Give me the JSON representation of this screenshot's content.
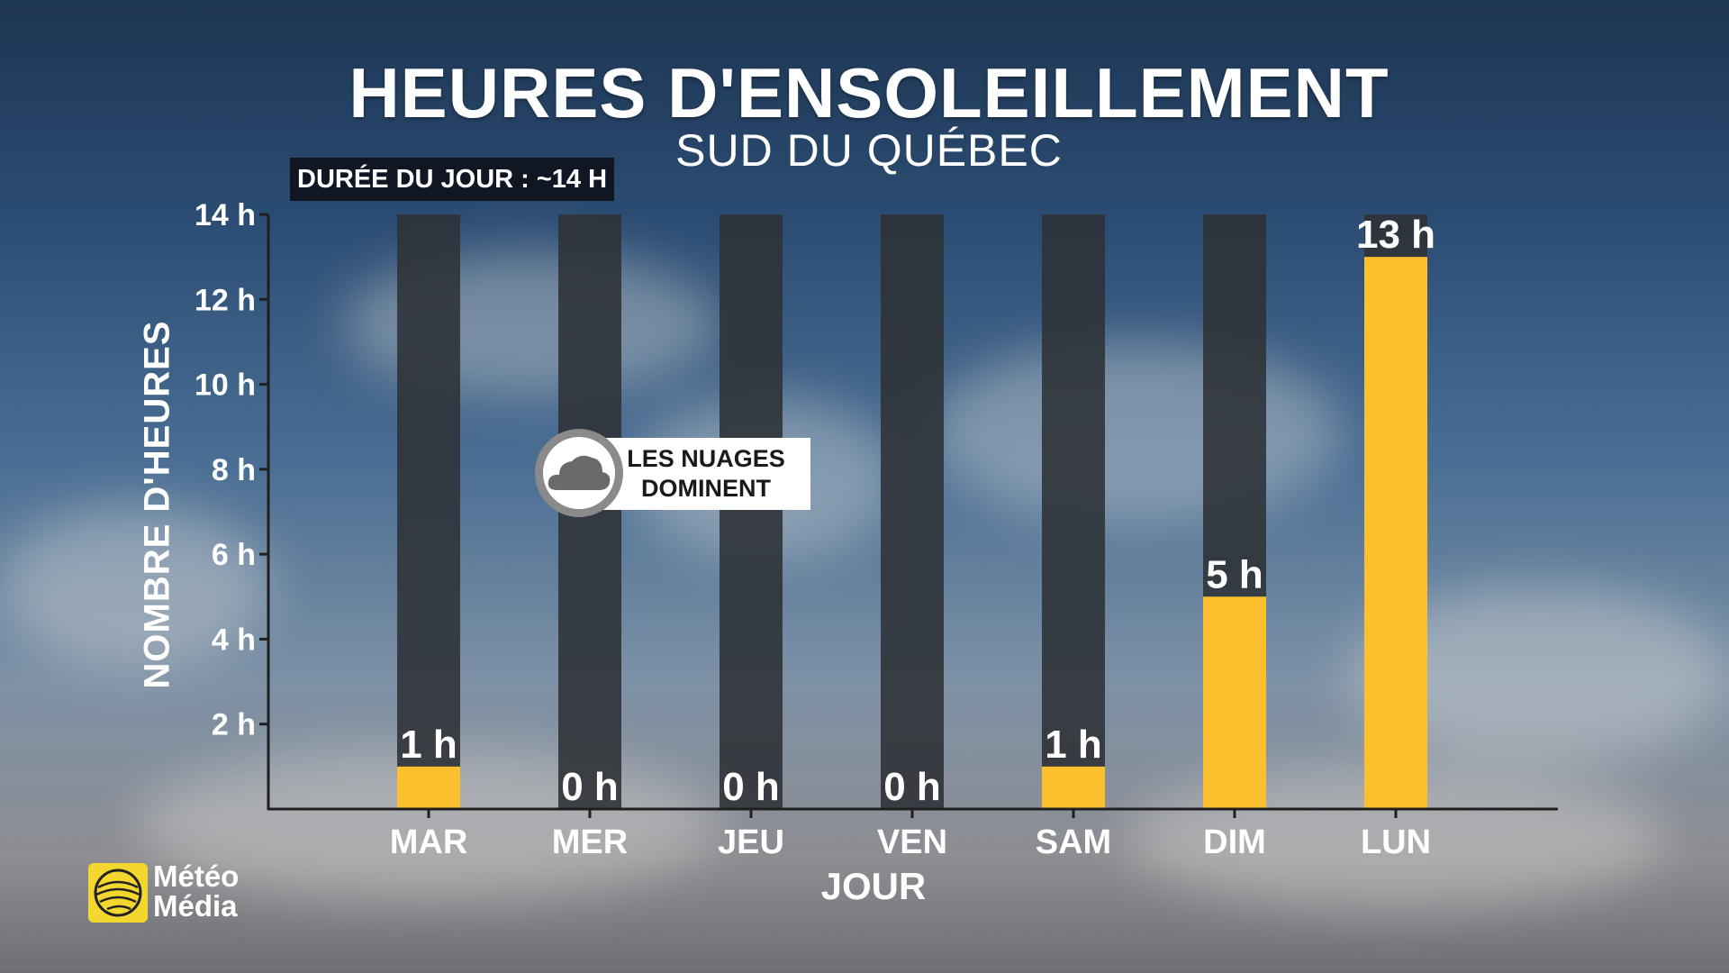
{
  "title": "HEURES D'ENSOLEILLEMENT",
  "subtitle": "SUD DU QUÉBEC",
  "day_length_badge": "DURÉE DU JOUR : ~14 H",
  "annotation": {
    "line1": "LES NUAGES",
    "line2": "DOMINENT",
    "icon": "cloud-icon"
  },
  "logo": {
    "line1": "Météo",
    "line2": "Média"
  },
  "colors": {
    "sun_bar": "#fcc02f",
    "daylight_bar": "#2e3136",
    "axis": "#1f1f1f",
    "text": "#ffffff"
  },
  "chart_data": {
    "type": "bar",
    "categories": [
      "MAR",
      "MER",
      "JEU",
      "VEN",
      "SAM",
      "DIM",
      "LUN"
    ],
    "values": [
      1,
      0,
      0,
      0,
      1,
      5,
      13
    ],
    "value_labels": [
      "1 h",
      "0 h",
      "0 h",
      "0 h",
      "1 h",
      "5 h",
      "13 h"
    ],
    "background_bar_value": 14,
    "xlabel": "JOUR",
    "ylabel": "NOMBRE D'HEURES",
    "ylim": [
      0,
      14
    ],
    "yticks": [
      2,
      4,
      6,
      8,
      10,
      12,
      14
    ],
    "ytick_labels": [
      "2 h",
      "4 h",
      "6 h",
      "8 h",
      "10 h",
      "12 h",
      "14 h"
    ],
    "grid": false,
    "legend": "none"
  }
}
